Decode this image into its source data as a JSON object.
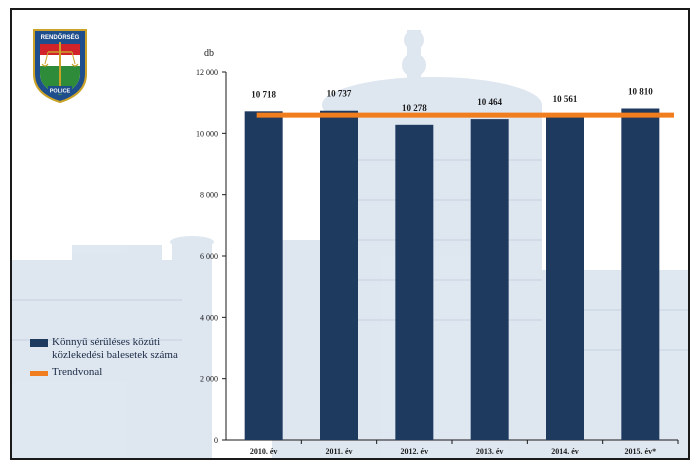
{
  "badge": {
    "top_text": "RENDŐRSÉG",
    "bottom_text": "POLICE"
  },
  "legend": {
    "bar_label": "Könnyű sérüléses közúti közlekedési balesetek száma",
    "line_label": "Trendvonal"
  },
  "colors": {
    "bar": "#1e3a5f",
    "trend": "#f07d1e",
    "background_building": "#c9d6e6"
  },
  "chart_data": {
    "type": "bar",
    "title": "",
    "ylabel": "db",
    "xlabel": "",
    "categories": [
      "2010. év",
      "2011. év",
      "2012. év",
      "2013. év",
      "2014. év",
      "2015. év*"
    ],
    "values": [
      10718,
      10737,
      10278,
      10464,
      10561,
      10810
    ],
    "value_labels": [
      "10 718",
      "10 737",
      "10 278",
      "10 464",
      "10 561",
      "10 810"
    ],
    "ylim": [
      0,
      12000
    ],
    "yticks": [
      0,
      2000,
      4000,
      6000,
      8000,
      10000,
      12000
    ],
    "ytick_labels": [
      "0",
      "2 000",
      "4 000",
      "6 000",
      "8 000",
      "10 000",
      "12 000"
    ],
    "trend": {
      "name": "Trendvonal",
      "value": 10595
    },
    "legend_position": "bottom-left"
  }
}
